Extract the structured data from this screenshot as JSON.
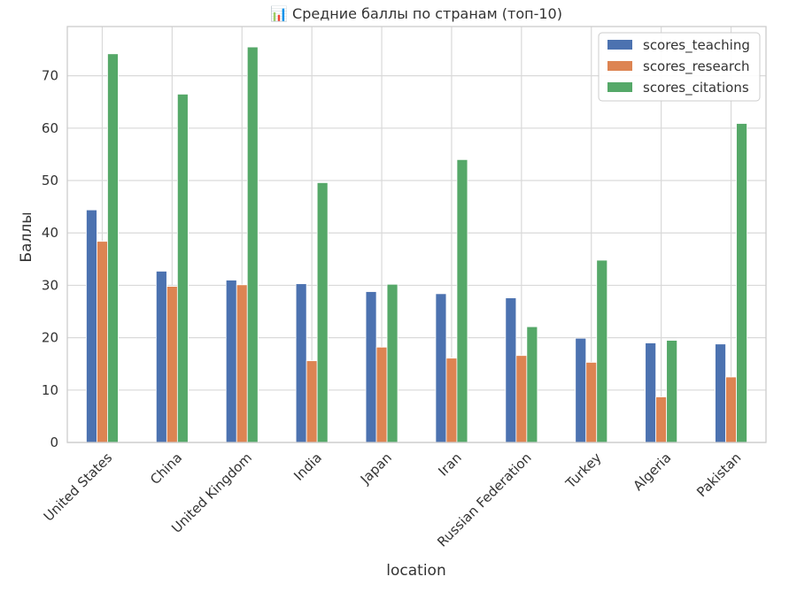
{
  "chart_data": {
    "type": "bar",
    "title": "📊 Средние баллы по странам (топ-10)",
    "xlabel": "location",
    "ylabel": "Баллы",
    "ylim": [
      0,
      79.4
    ],
    "yticks": [
      0,
      10,
      20,
      30,
      40,
      50,
      60,
      70
    ],
    "grid": true,
    "legend_position": "top-right",
    "categories": [
      "United States",
      "China",
      "United Kingdom",
      "India",
      "Japan",
      "Iran",
      "Russian Federation",
      "Turkey",
      "Algeria",
      "Pakistan"
    ],
    "series": [
      {
        "name": "scores_teaching",
        "color": "#4C72B0",
        "values": [
          44.4,
          32.7,
          31.0,
          30.3,
          28.8,
          28.4,
          27.6,
          19.9,
          19.0,
          18.8
        ]
      },
      {
        "name": "scores_research",
        "color": "#DD8452",
        "values": [
          38.4,
          29.8,
          30.1,
          15.6,
          18.2,
          16.1,
          16.6,
          15.3,
          8.7,
          12.5
        ]
      },
      {
        "name": "scores_citations",
        "color": "#55A868",
        "values": [
          74.2,
          66.5,
          75.5,
          49.6,
          30.2,
          54.0,
          22.1,
          34.8,
          19.5,
          60.9
        ]
      }
    ]
  }
}
